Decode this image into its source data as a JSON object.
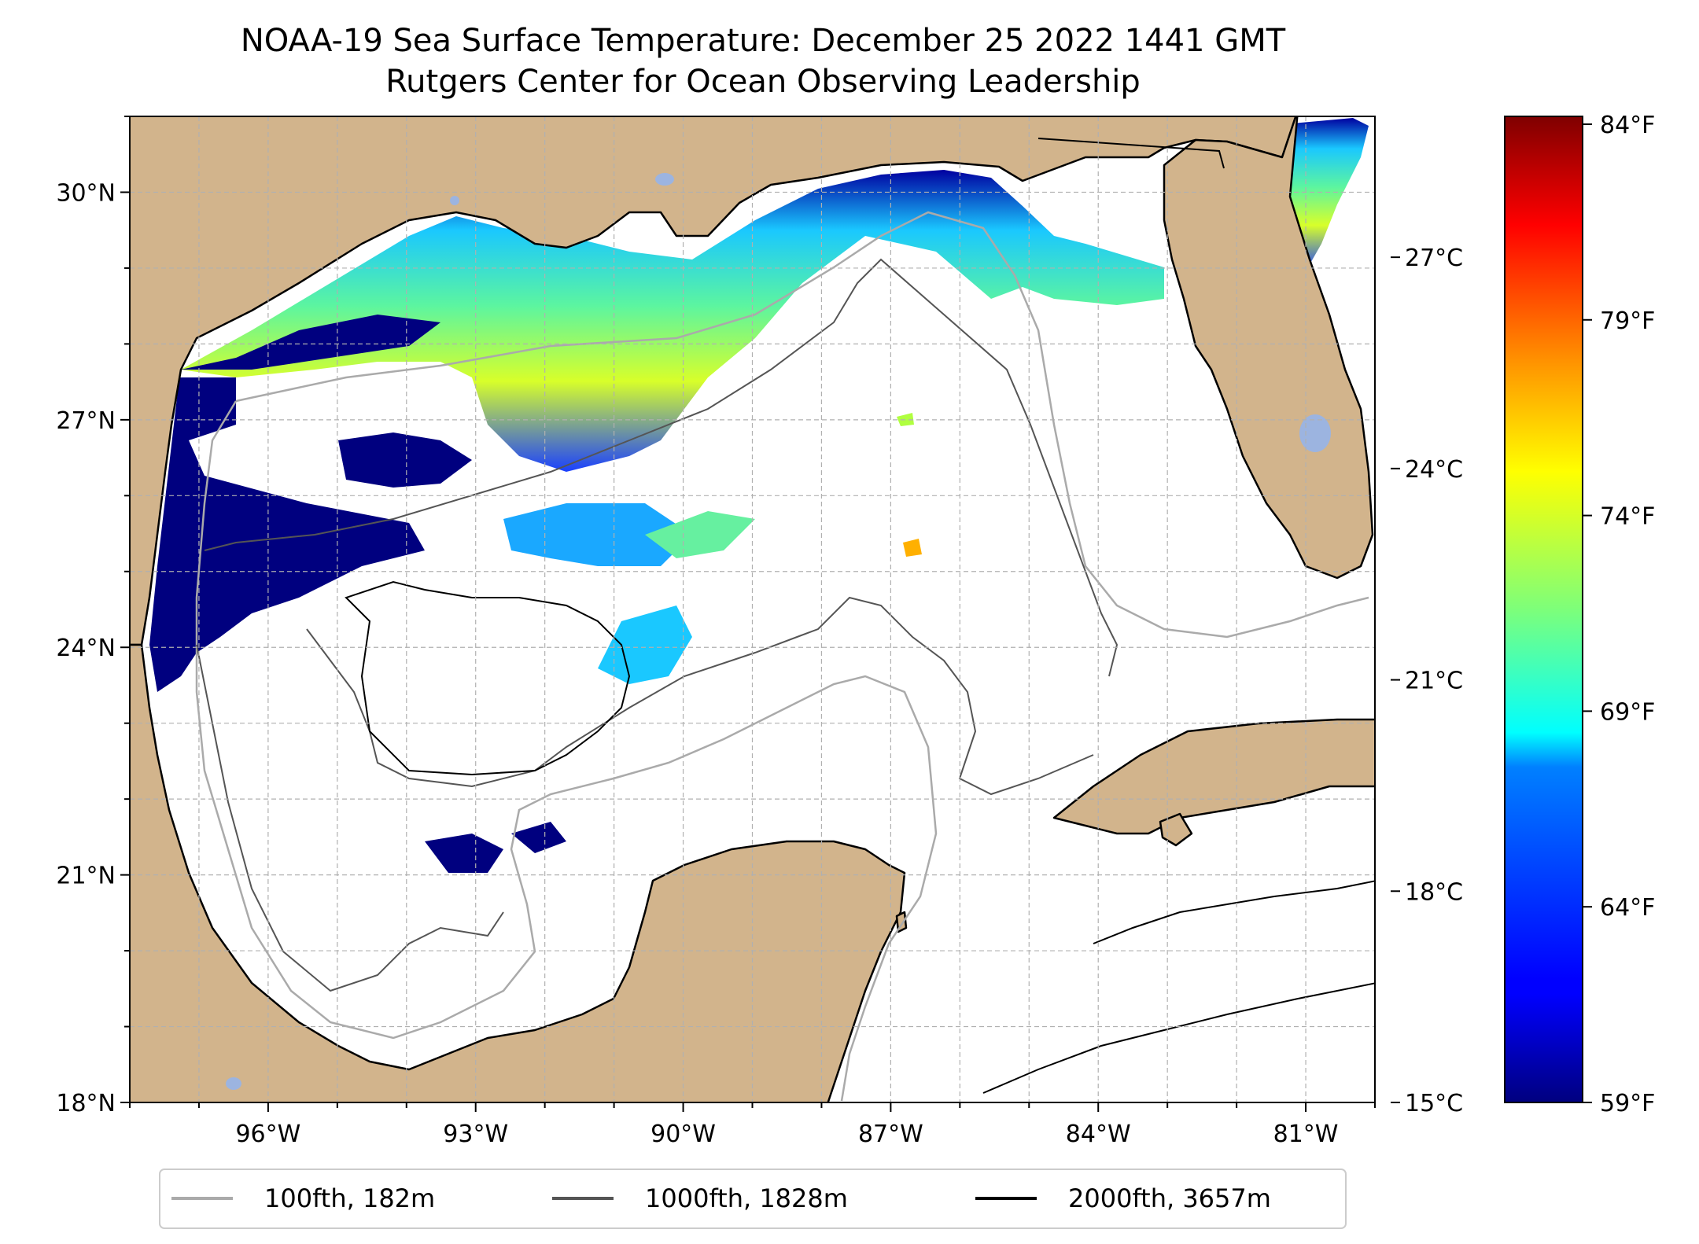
{
  "title": {
    "line1": "NOAA-19 Sea Surface Temperature: December 25 2022 1441 GMT",
    "line2": "Rutgers Center for Ocean Observing Leadership"
  },
  "map": {
    "lon_range": [
      -98,
      -80
    ],
    "lat_range": [
      18,
      31
    ],
    "lon_ticks": [
      {
        "value": -96,
        "label": "96°W"
      },
      {
        "value": -93,
        "label": "93°W"
      },
      {
        "value": -90,
        "label": "90°W"
      },
      {
        "value": -87,
        "label": "87°W"
      },
      {
        "value": -84,
        "label": "84°W"
      },
      {
        "value": -81,
        "label": "81°W"
      }
    ],
    "lat_ticks": [
      {
        "value": 18,
        "label": "18°N"
      },
      {
        "value": 21,
        "label": "21°N"
      },
      {
        "value": 24,
        "label": "24°N"
      },
      {
        "value": 27,
        "label": "27°N"
      },
      {
        "value": 30,
        "label": "30°N"
      }
    ],
    "gridlines": true,
    "land_color": "#d2b48c",
    "lake_color": "#9cb4e0",
    "ocean_color": "#ffffff"
  },
  "colorbar": {
    "colormap": "jet",
    "celsius_range": [
      15,
      29
    ],
    "celsius_ticks": [
      {
        "value": 15,
        "label": "15°C"
      },
      {
        "value": 18,
        "label": "18°C"
      },
      {
        "value": 21,
        "label": "21°C"
      },
      {
        "value": 24,
        "label": "24°C"
      },
      {
        "value": 27,
        "label": "27°C"
      }
    ],
    "fahrenheit_ticks": [
      {
        "value": 59,
        "label": "59°F"
      },
      {
        "value": 64,
        "label": "64°F"
      },
      {
        "value": 69,
        "label": "69°F"
      },
      {
        "value": 74,
        "label": "74°F"
      },
      {
        "value": 79,
        "label": "79°F"
      },
      {
        "value": 84,
        "label": "84°F"
      }
    ]
  },
  "legend": {
    "placement": "bottom",
    "entries": [
      {
        "label": "100fth, 182m",
        "color": "#aaaaaa"
      },
      {
        "label": "1000fth, 1828m",
        "color": "#555555"
      },
      {
        "label": "2000fth, 3657m",
        "color": "#000000"
      }
    ]
  }
}
